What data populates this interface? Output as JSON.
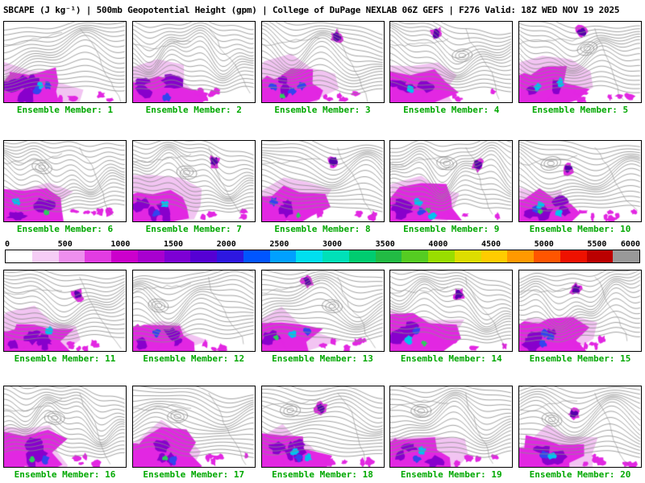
{
  "title": "SBCAPE (J kg⁻¹) | 500mb Geopotential Height (gpm) | College of DuPage NEXLAB 06Z GEFS | F276 Valid: 18Z WED NOV 19 2025",
  "panels": [
    {
      "member": 1,
      "label": "Ensemble Member: 1"
    },
    {
      "member": 2,
      "label": "Ensemble Member: 2"
    },
    {
      "member": 3,
      "label": "Ensemble Member: 3"
    },
    {
      "member": 4,
      "label": "Ensemble Member: 4"
    },
    {
      "member": 5,
      "label": "Ensemble Member: 5"
    },
    {
      "member": 6,
      "label": "Ensemble Member: 6"
    },
    {
      "member": 7,
      "label": "Ensemble Member: 7"
    },
    {
      "member": 8,
      "label": "Ensemble Member: 8"
    },
    {
      "member": 9,
      "label": "Ensemble Member: 9"
    },
    {
      "member": 10,
      "label": "Ensemble Member: 10"
    },
    {
      "member": 11,
      "label": "Ensemble Member: 11"
    },
    {
      "member": 12,
      "label": "Ensemble Member: 12"
    },
    {
      "member": 13,
      "label": "Ensemble Member: 13"
    },
    {
      "member": 14,
      "label": "Ensemble Member: 14"
    },
    {
      "member": 15,
      "label": "Ensemble Member: 15"
    },
    {
      "member": 16,
      "label": "Ensemble Member: 16"
    },
    {
      "member": 17,
      "label": "Ensemble Member: 17"
    },
    {
      "member": 18,
      "label": "Ensemble Member: 18"
    },
    {
      "member": 19,
      "label": "Ensemble Member: 19"
    },
    {
      "member": 20,
      "label": "Ensemble Member: 20"
    }
  ],
  "colorbar": {
    "min": 0,
    "max": 6000,
    "tick_step": 500,
    "ticks": [
      "0",
      "500",
      "1000",
      "1500",
      "2000",
      "2500",
      "3000",
      "3500",
      "4000",
      "4500",
      "5000",
      "5500",
      "6000"
    ],
    "segment_colors": [
      "#ffffff",
      "#f6cdf6",
      "#ee8fee",
      "#e23ce2",
      "#cc00cc",
      "#a800cf",
      "#7d00d4",
      "#5500d4",
      "#2d17e0",
      "#0055ff",
      "#00a0ff",
      "#00dff0",
      "#00e0b8",
      "#00cc70",
      "#22bb44",
      "#55cc22",
      "#99dd00",
      "#dddd00",
      "#ffcc00",
      "#ff9900",
      "#ff5500",
      "#ee1100",
      "#bb0000",
      "#999999"
    ]
  },
  "colors": {
    "member_label": "#00a800",
    "title_text": "#000000"
  },
  "map_colors": {
    "contour": "#8a8a8a",
    "coast": "#666666",
    "cape_fringe": "#f2c4f2",
    "cape_magenta": "#e227e2",
    "cape_purple": "#8800cc",
    "cape_violet": "#5500aa",
    "cape_blue": "#3344ee",
    "cape_cyan": "#00c3ef",
    "cape_green": "#2ecc5e"
  }
}
